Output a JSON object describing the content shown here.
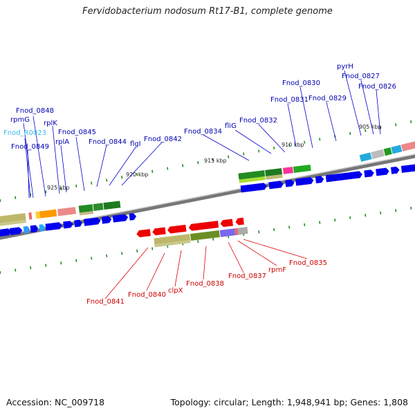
{
  "map": {
    "title": "Fervidobacterium nodosum Rt17-B1, complete genome",
    "accession": "Accession: NC_009718",
    "summary": "Topology: circular; Length: 1,948,941 bp; Genes: 1,808"
  },
  "scale_ticks": [
    "905 kbp",
    "910 kbp",
    "915 kbp",
    "920 kbp",
    "925 kbp"
  ],
  "forward_labels": [
    "Fnod_0848",
    "rpmG",
    "Fnod_R0023",
    "Fnod_0849",
    "rplK",
    "rplA",
    "Fnod_0845",
    "Fnod_0844",
    "flgI",
    "Fnod_0842",
    "Fnod_0834",
    "fliG",
    "Fnod_0832",
    "Fnod_0831",
    "Fnod_0830",
    "Fnod_0829",
    "pyrH",
    "Fnod_0827",
    "Fnod_0826"
  ],
  "reverse_labels": [
    "Fnod_0841",
    "Fnod_0840",
    "clpX",
    "Fnod_0838",
    "Fnod_0837",
    "rpmF",
    "Fnod_0835"
  ],
  "colors": {
    "forward_label": "#0000b0",
    "rna_label": "#33bbee",
    "reverse_label": "#cc0000",
    "forward_gene": "#0000ee",
    "reverse_gene": "#ee0000",
    "tick": "#228822",
    "backbone": "#888888"
  }
}
